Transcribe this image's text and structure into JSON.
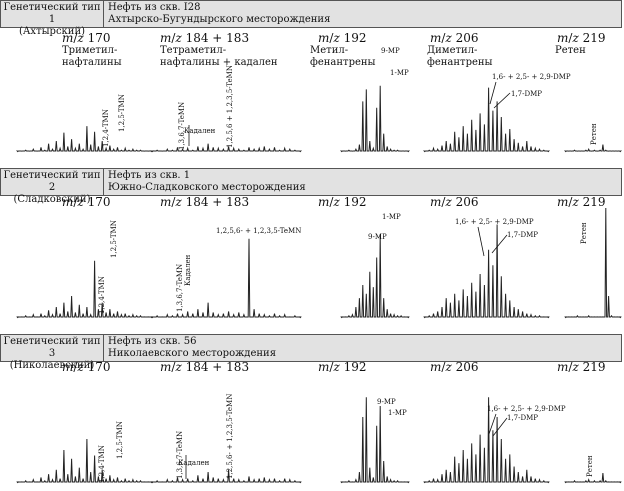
{
  "panels": [
    {
      "type_label": [
        "Генетический тип 1",
        "(Ахтырский)"
      ],
      "oil_label": [
        "Нефть из скв. I28",
        "Ахтырско-Бугундырского месторождения"
      ],
      "mz_labels": [
        "m/z 170",
        "m/z 184 + 183",
        "m/z 192",
        "m/z 206",
        "m/z 219"
      ],
      "group_labels": [
        [
          "Триметил-",
          "нафталины"
        ],
        [
          "Тетраметил-",
          "нафталины + кадален"
        ],
        [
          "Метил-",
          "фенантрены"
        ],
        [
          "Диметил-",
          "фенантрены"
        ],
        [
          "Ретен"
        ]
      ],
      "peak_labels": [
        "1,2,4-TMN",
        "1,2,5-TMN",
        "1,3,6,7-TeMN",
        "Кадален",
        "1,2,5,6 + 1,2,3,5-TeMN",
        "9-MP",
        "1-MP",
        "1,6- + 2,5- + 2,9-DMP",
        "1,7-DMP",
        "Ретен"
      ]
    },
    {
      "type_label": [
        "Генетический тип 2",
        "(Сладковский)"
      ],
      "oil_label": [
        "Нефть из скв. 1",
        "Южно-Сладковского месторождения"
      ],
      "mz_labels": [
        "m/z 170",
        "m/z 184 + 183",
        "m/z 192",
        "m/z 206",
        "m/z 219"
      ],
      "peak_labels": [
        "1,2,5-TMN",
        "1,2,4-TMN",
        "1,3,6,7-TeMN",
        "Кадален",
        "1,2,5,6- + 1,2,3,5-TeMN",
        "1-MP",
        "9-MP",
        "1,6- + 2,5- + 2,9-DMP",
        "1,7-DMP",
        "Ретен"
      ]
    },
    {
      "type_label": [
        "Генетический тип 3",
        "(Николаевский)"
      ],
      "oil_label": [
        "Нефть из скв. 56",
        "Николаевского месторождения"
      ],
      "mz_labels": [
        "m/z 170",
        "m/z 184 + 183",
        "m/z 192",
        "m/z 206",
        "m/z 219"
      ],
      "peak_labels": [
        "1,2,4-TMN",
        "1,2,5-TMN",
        "1,3,6,7-TeMN",
        "Кадален",
        "1,2,5,6- + 1,2,3,5-TeMN",
        "9-MP",
        "1-MP",
        "1,6- + 2,5- + 2,9-DMP",
        "1,7-DMP",
        "Ретен"
      ]
    }
  ],
  "chart_data": [
    {
      "type": "line",
      "panel": 1,
      "series": [
        {
          "values": [
            1,
            1,
            2,
            1,
            3,
            1,
            5,
            2,
            9,
            3,
            12,
            4,
            21,
            6,
            14,
            4,
            9,
            3,
            28,
            8,
            22,
            6,
            12,
            4,
            7,
            3,
            5,
            2,
            4,
            2,
            3,
            2,
            2,
            1,
            1,
            1
          ]
        },
        {
          "values": [
            1,
            2,
            1,
            3,
            2,
            5,
            3,
            4,
            2,
            6,
            4,
            9,
            5,
            4,
            3,
            6,
            4,
            3,
            2,
            5,
            3,
            4,
            6,
            3,
            5,
            2,
            4,
            3,
            2,
            1
          ]
        },
        {
          "values": [
            1,
            1,
            2,
            1,
            3,
            8,
            55,
            68,
            12,
            4,
            48,
            72,
            20,
            6,
            3,
            2,
            2,
            1,
            1,
            1
          ]
        },
        {
          "values": [
            1,
            2,
            4,
            3,
            7,
            12,
            9,
            22,
            16,
            28,
            20,
            35,
            24,
            42,
            30,
            70,
            45,
            55,
            38,
            20,
            25,
            14,
            10,
            6,
            12,
            6,
            4,
            3,
            2,
            1
          ]
        },
        {
          "values": [
            1,
            1,
            1,
            2,
            1,
            1,
            1,
            2,
            3,
            1,
            2,
            1,
            2,
            8,
            2,
            1,
            1,
            1,
            1,
            1
          ]
        }
      ]
    },
    {
      "type": "line",
      "panel": 2,
      "series": [
        {
          "values": [
            1,
            1,
            2,
            1,
            3,
            1,
            4,
            2,
            7,
            3,
            10,
            4,
            14,
            6,
            20,
            5,
            12,
            4,
            10,
            3,
            52,
            8,
            14,
            5,
            8,
            4,
            6,
            3,
            4,
            2,
            3,
            2,
            2,
            1,
            1,
            1
          ]
        },
        {
          "values": [
            1,
            2,
            1,
            3,
            2,
            4,
            3,
            6,
            4,
            8,
            5,
            14,
            5,
            3,
            4,
            6,
            3,
            5,
            3,
            72,
            8,
            4,
            3,
            2,
            4,
            2,
            3,
            1,
            2,
            1
          ]
        },
        {
          "values": [
            1,
            1,
            2,
            3,
            10,
            18,
            30,
            22,
            42,
            28,
            55,
            76,
            18,
            8,
            4,
            3,
            2,
            2,
            1,
            1
          ]
        },
        {
          "values": [
            1,
            2,
            4,
            6,
            10,
            18,
            14,
            22,
            16,
            26,
            20,
            32,
            24,
            40,
            30,
            62,
            48,
            85,
            38,
            22,
            16,
            10,
            8,
            6,
            4,
            3,
            2,
            2,
            1,
            1
          ]
        },
        {
          "values": [
            1,
            1,
            1,
            1,
            2,
            1,
            1,
            1,
            2,
            1,
            1,
            1,
            1,
            1,
            100,
            20,
            2,
            1,
            1,
            1
          ]
        }
      ]
    },
    {
      "type": "line",
      "panel": 3,
      "series": [
        {
          "values": [
            1,
            1,
            2,
            1,
            3,
            1,
            5,
            2,
            8,
            3,
            12,
            4,
            30,
            8,
            22,
            6,
            14,
            4,
            40,
            10,
            25,
            6,
            12,
            4,
            7,
            3,
            5,
            2,
            4,
            2,
            3,
            2,
            2,
            1,
            1,
            1
          ]
        },
        {
          "values": [
            1,
            2,
            1,
            3,
            2,
            5,
            3,
            4,
            2,
            7,
            4,
            10,
            5,
            4,
            3,
            12,
            4,
            3,
            2,
            6,
            3,
            4,
            5,
            3,
            4,
            2,
            4,
            3,
            2,
            1
          ]
        },
        {
          "values": [
            1,
            1,
            2,
            1,
            3,
            10,
            60,
            78,
            14,
            5,
            52,
            70,
            20,
            6,
            3,
            2,
            2,
            1,
            1,
            1
          ]
        },
        {
          "values": [
            1,
            2,
            4,
            3,
            8,
            12,
            10,
            24,
            18,
            30,
            22,
            36,
            26,
            44,
            32,
            78,
            48,
            60,
            40,
            22,
            26,
            15,
            10,
            6,
            12,
            6,
            4,
            3,
            2,
            1
          ]
        },
        {
          "values": [
            1,
            1,
            1,
            2,
            1,
            1,
            1,
            2,
            3,
            1,
            2,
            1,
            2,
            9,
            2,
            1,
            1,
            1,
            1,
            1
          ]
        }
      ]
    }
  ]
}
